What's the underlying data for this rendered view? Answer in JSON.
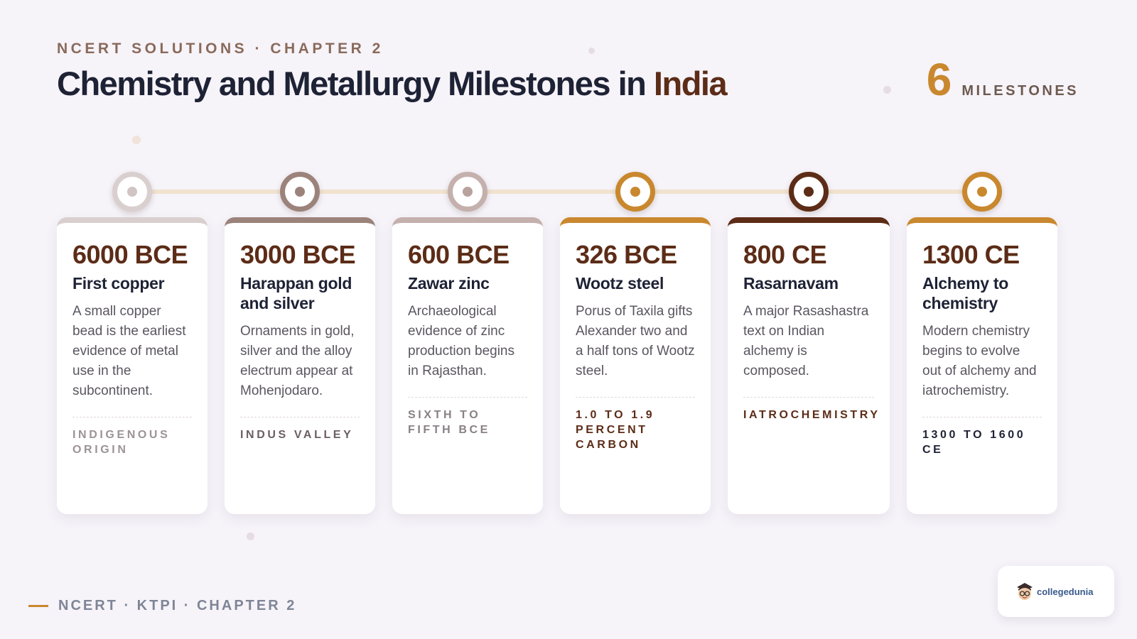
{
  "header": {
    "eyebrow": "NCERT SOLUTIONS · CHAPTER 2",
    "title_main": "Chemistry and Metallurgy Milestones in ",
    "title_accent": "India",
    "count_number": "6",
    "count_label": "MILESTONES"
  },
  "milestones": [
    {
      "date": "6000 BCE",
      "name": "First copper",
      "description": "A small copper bead is the earliest evidence of metal use in the subcontinent.",
      "tag": "INDIGENOUS ORIGIN",
      "accent": "#d9cfcf",
      "core": "#d1c4c4",
      "tag_color": "#9c9396"
    },
    {
      "date": "3000 BCE",
      "name": "Harappan gold and silver",
      "description": "Ornaments in gold, silver and the alloy electrum appear at Mohenjodaro.",
      "tag": "INDUS VALLEY",
      "accent": "#9b837b",
      "core": "#9b837b",
      "tag_color": "#6a5f63"
    },
    {
      "date": "600 BCE",
      "name": "Zawar zinc",
      "description": "Archaeological evidence of zinc production begins in Rajasthan.",
      "tag": "SIXTH TO FIFTH BCE",
      "accent": "#c4b0ac",
      "core": "#b7a29e",
      "tag_color": "#8a8086"
    },
    {
      "date": "326 BCE",
      "name": "Wootz steel",
      "description": "Porus of Taxila gifts Alexander two and a half tons of Wootz steel.",
      "tag": "1.0 TO 1.9 PERCENT CARBON",
      "accent": "#c9882e",
      "core": "#c9882e",
      "tag_color": "#5c2c17"
    },
    {
      "date": "800 CE",
      "name": "Rasarnavam",
      "description": "A major Rasashastra text on Indian alchemy is composed.",
      "tag": "IATROCHEMISTRY",
      "accent": "#5c2c17",
      "core": "#5c2c17",
      "tag_color": "#5c2c17"
    },
    {
      "date": "1300 CE",
      "name": "Alchemy to chemistry",
      "description": "Modern chemistry begins to evolve out of alchemy and iatrochemistry.",
      "tag": "1300 TO 1600 CE",
      "accent": "#c9882e",
      "core": "#c9882e",
      "tag_color": "#1e2235"
    }
  ],
  "footer": {
    "text": "NCERT · KTPI · CHAPTER 2"
  },
  "logo": {
    "text": "collegedunia",
    "icon": "student-face-icon"
  }
}
